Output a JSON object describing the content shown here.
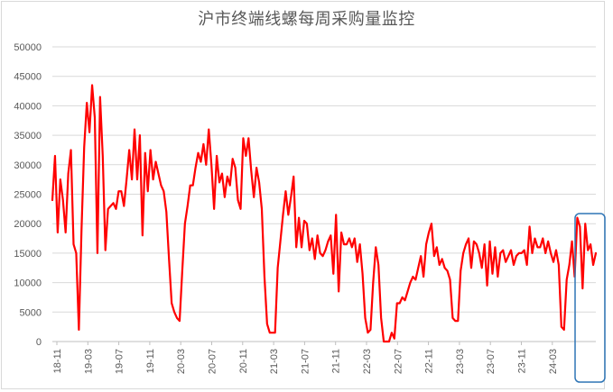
{
  "chart_data": {
    "type": "line",
    "title": "沪市终端线螺每周采购量监控",
    "xlabel": "",
    "ylabel": "",
    "ylim": [
      0,
      50000
    ],
    "yticks": [
      0,
      5000,
      10000,
      15000,
      20000,
      25000,
      30000,
      35000,
      40000,
      45000,
      50000
    ],
    "xticks": [
      "18-11",
      "19-03",
      "19-07",
      "19-11",
      "20-03",
      "20-07",
      "20-11",
      "21-03",
      "21-07",
      "21-11",
      "22-03",
      "22-07",
      "22-11",
      "23-03",
      "23-07",
      "23-11",
      "24-03"
    ],
    "grid": true,
    "legend": "none",
    "colors": {
      "series": "#ff0000",
      "highlight": "#2e75b6",
      "grid": "#d9d9d9",
      "text": "#595959"
    },
    "annotations": [
      {
        "type": "highlight-box",
        "x_range": [
          "24-03",
          "24-06"
        ]
      }
    ],
    "series": [
      {
        "values": [
          24000,
          31500,
          18500,
          27500,
          24000,
          18500,
          28500,
          32500,
          16500,
          15000,
          2000,
          19000,
          33000,
          40500,
          35500,
          43500,
          38000,
          15000,
          41500,
          31500,
          15500,
          22500,
          23000,
          23500,
          22500,
          25500,
          25500,
          23000,
          27500,
          32500,
          27500,
          36000,
          27500,
          35000,
          18000,
          32000,
          25500,
          32500,
          27500,
          30500,
          28500,
          26500,
          25500,
          22000,
          14000,
          6500,
          5000,
          4000,
          3500,
          12000,
          20000,
          23000,
          26500,
          26500,
          29500,
          32000,
          30500,
          33500,
          30000,
          36000,
          30000,
          22500,
          31500,
          27000,
          28500,
          24500,
          28000,
          26500,
          31000,
          29500,
          24000,
          22500,
          34500,
          31500,
          34500,
          29000,
          24500,
          29500,
          27000,
          22500,
          11000,
          3000,
          1500,
          1500,
          1500,
          12500,
          17000,
          21500,
          25500,
          21500,
          24500,
          28000,
          16000,
          21000,
          16000,
          20500,
          20000,
          15500,
          17500,
          14000,
          18000,
          15000,
          14500,
          15500,
          17000,
          18000,
          11500,
          21500,
          8500,
          18500,
          16500,
          16500,
          17500,
          16000,
          17500,
          13500,
          16500,
          11500,
          4000,
          1500,
          2000,
          10000,
          16000,
          13000,
          4000,
          0,
          0,
          0,
          1500,
          500,
          6500,
          6500,
          7500,
          7000,
          8500,
          10000,
          11000,
          10500,
          12500,
          14500,
          11000,
          16500,
          18500,
          20000,
          14500,
          16000,
          13000,
          14000,
          12500,
          12000,
          10500,
          4000,
          3500,
          3500,
          12000,
          15000,
          16500,
          17500,
          12500,
          17000,
          16500,
          15000,
          12500,
          16500,
          9500,
          17000,
          11500,
          16000,
          11000,
          15000,
          15500,
          13500,
          14500,
          15500,
          13000,
          14500,
          15000,
          15000,
          15500,
          13000,
          19500,
          15000,
          17500,
          16000,
          16000,
          17500,
          15000,
          17000,
          15000,
          13500,
          15500,
          13000,
          2500,
          2000,
          10500,
          13000,
          17000,
          11000,
          21000,
          19500,
          9000,
          20000,
          15500,
          16500,
          13000,
          15000
        ]
      }
    ]
  }
}
